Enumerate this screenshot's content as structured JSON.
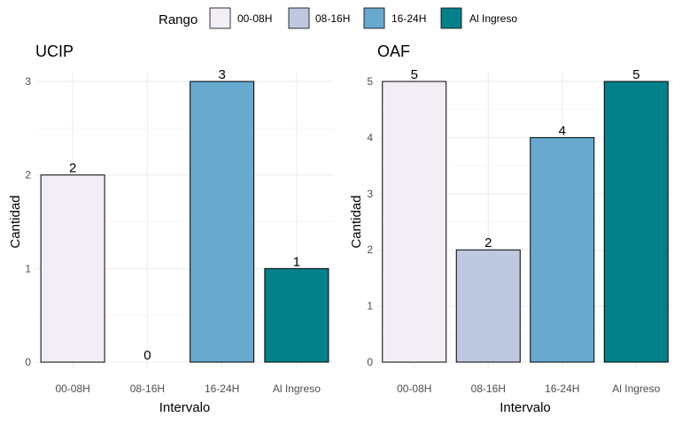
{
  "legend": {
    "title": "Rango",
    "items": [
      {
        "label": "00-08H",
        "color": "#f3eef6"
      },
      {
        "label": "08-16H",
        "color": "#bec8e0"
      },
      {
        "label": "16-24H",
        "color": "#67a9cf"
      },
      {
        "label": "Al Ingreso",
        "color": "#02818a"
      }
    ]
  },
  "chart_data": [
    {
      "type": "bar",
      "title": "UCIP",
      "xlabel": "Intervalo",
      "ylabel": "Cantidad",
      "categories": [
        "00-08H",
        "08-16H",
        "16-24H",
        "Al Ingreso"
      ],
      "values": [
        2,
        0,
        3,
        1
      ],
      "colors": [
        "#f3eef6",
        "#bec8e0",
        "#67a9cf",
        "#02818a"
      ],
      "ylim": [
        0,
        3
      ],
      "yticks": [
        0,
        1,
        2,
        3
      ],
      "grid": true
    },
    {
      "type": "bar",
      "title": "OAF",
      "xlabel": "Intervalo",
      "ylabel": "Cantidad",
      "categories": [
        "00-08H",
        "08-16H",
        "16-24H",
        "Al Ingreso"
      ],
      "values": [
        5,
        2,
        4,
        5
      ],
      "colors": [
        "#f3eef6",
        "#bec8e0",
        "#67a9cf",
        "#02818a"
      ],
      "ylim": [
        0,
        5
      ],
      "yticks": [
        0,
        1,
        2,
        3,
        4,
        5
      ],
      "grid": true
    }
  ]
}
